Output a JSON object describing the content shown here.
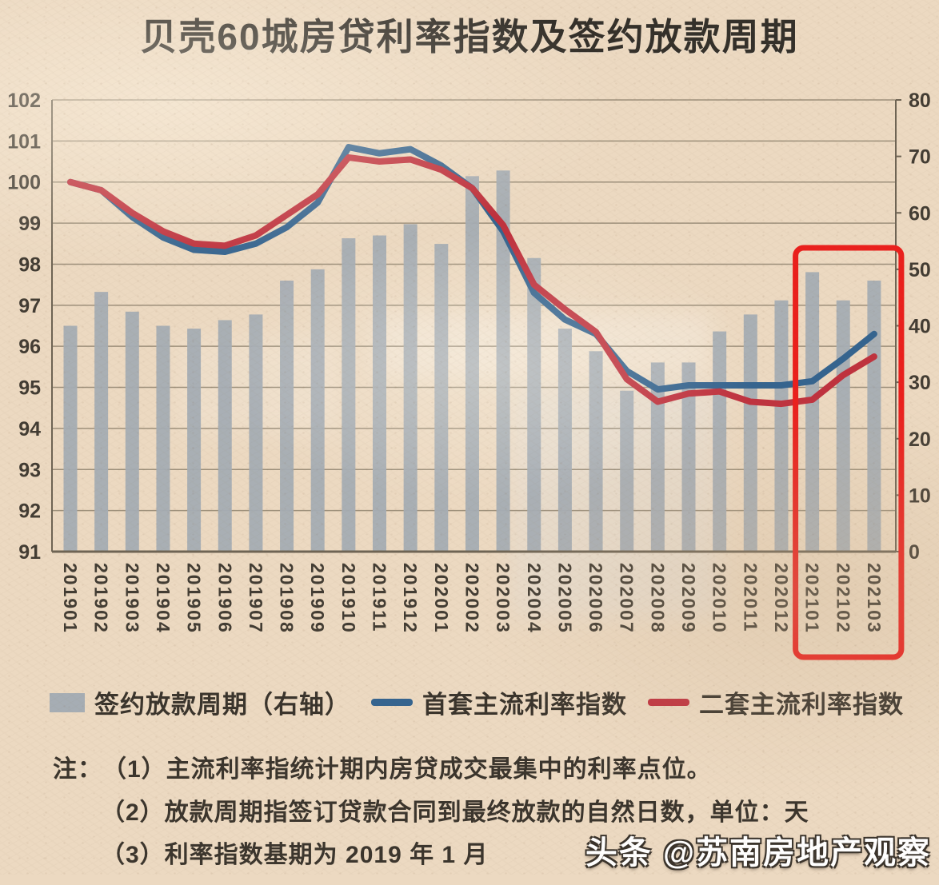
{
  "title": "贝壳60城房贷利率指数及签约放款周期",
  "watermark": "头条 @苏南房地产观察",
  "notes": {
    "prefix": "注：",
    "items": [
      "（1）主流利率指统计期内房贷成交最集中的利率点位。",
      "（2）放款周期指签订贷款合同到最终放款的自然日数，单位：天",
      "（3）利率指数基期为 2019 年 1 月"
    ]
  },
  "chart_data": {
    "type": "bar+line combo",
    "title": "贝壳60城房贷利率指数及签约放款周期",
    "categories": [
      "201901",
      "201902",
      "201903",
      "201904",
      "201905",
      "201906",
      "201907",
      "201908",
      "201909",
      "201910",
      "201911",
      "201912",
      "202001",
      "202002",
      "202003",
      "202004",
      "202005",
      "202006",
      "202007",
      "202008",
      "202009",
      "202010",
      "202011",
      "202012",
      "202101",
      "202102",
      "202103"
    ],
    "series": [
      {
        "name": "签约放款周期（右轴）",
        "type": "bar",
        "axis": "right",
        "color": "#a6adb4",
        "values": [
          40,
          46,
          42.5,
          40,
          39.5,
          41,
          42,
          48,
          50,
          55.5,
          56,
          58,
          54.5,
          66.5,
          67.5,
          52,
          39.5,
          35.5,
          28.5,
          33.5,
          33.5,
          39,
          42,
          44.5,
          49.5,
          44.5,
          48
        ]
      },
      {
        "name": "首套主流利率指数",
        "type": "line",
        "axis": "left",
        "color": "#35648f",
        "values": [
          100.0,
          99.8,
          99.15,
          98.65,
          98.35,
          98.3,
          98.5,
          98.9,
          99.5,
          100.85,
          100.7,
          100.8,
          100.4,
          99.85,
          98.8,
          97.3,
          96.65,
          96.3,
          95.4,
          94.95,
          95.05,
          95.05,
          95.05,
          95.05,
          95.15,
          95.7,
          96.3
        ]
      },
      {
        "name": "二套主流利率指数",
        "type": "line",
        "axis": "left",
        "color": "#bf323e",
        "values": [
          100.0,
          99.8,
          99.25,
          98.8,
          98.5,
          98.45,
          98.7,
          99.2,
          99.7,
          100.6,
          100.5,
          100.55,
          100.3,
          99.85,
          98.95,
          97.5,
          96.9,
          96.35,
          95.2,
          94.65,
          94.85,
          94.9,
          94.65,
          94.6,
          94.7,
          95.3,
          95.75
        ]
      }
    ],
    "left_axis": {
      "min": 91,
      "max": 102,
      "tick_step": 1
    },
    "right_axis": {
      "min": 0,
      "max": 80,
      "tick_step": 10
    },
    "grid": true,
    "legend_position": "bottom",
    "x_labels_rotated_deg": 90,
    "highlight_box": {
      "from_category": "202101",
      "to_category": "202103",
      "color": "#ea1f1c"
    },
    "colors": {
      "background": "#ecd9c1",
      "gridline": "#8a7e6a",
      "axis_line": "#6e6454",
      "tick_text": "#423c33"
    }
  }
}
